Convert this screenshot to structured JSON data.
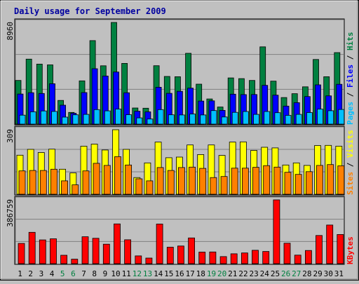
{
  "title": "Daily usage for September 2009",
  "colors": {
    "background": "#c0c0c0",
    "plot_bg": "#c0c0c0",
    "title": "#0000a0",
    "hits": "#008040",
    "files": "#0000ff",
    "pages": "#00c0ff",
    "visits": "#ffff00",
    "sites": "#ff8000",
    "kbytes": "#ff0000",
    "weekend_label": "#008040",
    "weekday_label": "#000000"
  },
  "chart_data": [
    {
      "type": "bar",
      "panel": "hits-files-pages",
      "categories": [
        "1",
        "2",
        "3",
        "4",
        "5",
        "6",
        "7",
        "8",
        "9",
        "10",
        "11",
        "12",
        "13",
        "14",
        "15",
        "16",
        "17",
        "18",
        "19",
        "20",
        "21",
        "22",
        "23",
        "24",
        "25",
        "26",
        "27",
        "28",
        "29",
        "30",
        "31"
      ],
      "weekend_days": [
        "5",
        "6",
        "12",
        "13",
        "19",
        "20",
        "26",
        "27"
      ],
      "ymax_label": "8960",
      "ylim": [
        0,
        8960
      ],
      "right_label_parts": [
        "Pages",
        "Files",
        "Hits"
      ],
      "series": [
        {
          "name": "Hits",
          "values": [
            3850,
            5730,
            5290,
            5220,
            2090,
            1030,
            3810,
            7360,
            5140,
            8960,
            5350,
            1420,
            1400,
            5150,
            4200,
            4180,
            6240,
            3520,
            2220,
            1510,
            4070,
            4010,
            3850,
            6810,
            3790,
            2340,
            2680,
            3290,
            5700,
            4180,
            6300
          ]
        },
        {
          "name": "Files",
          "values": [
            2650,
            2770,
            2700,
            3560,
            1670,
            960,
            2780,
            4880,
            4240,
            4590,
            2760,
            1140,
            1080,
            3250,
            2710,
            2890,
            3170,
            2030,
            2050,
            1210,
            2640,
            2600,
            2610,
            3420,
            2550,
            1590,
            1890,
            2430,
            3460,
            2490,
            3510
          ]
        },
        {
          "name": "Pages",
          "values": [
            790,
            1090,
            1160,
            1120,
            620,
            820,
            860,
            1280,
            1170,
            1330,
            830,
            550,
            450,
            1280,
            820,
            810,
            890,
            810,
            1190,
            630,
            1040,
            1110,
            860,
            1110,
            1010,
            770,
            860,
            1020,
            1320,
            1180,
            1290
          ]
        }
      ]
    },
    {
      "type": "bar",
      "panel": "visits-sites",
      "categories": [
        "1",
        "2",
        "3",
        "4",
        "5",
        "6",
        "7",
        "8",
        "9",
        "10",
        "11",
        "12",
        "13",
        "14",
        "15",
        "16",
        "17",
        "18",
        "19",
        "20",
        "21",
        "22",
        "23",
        "24",
        "25",
        "26",
        "27",
        "28",
        "29",
        "30",
        "31"
      ],
      "ymax_label": "309",
      "ylim": [
        0,
        309
      ],
      "right_label_parts": [
        "Sites",
        "Visits"
      ],
      "series": [
        {
          "name": "Visits",
          "values": [
            187,
            215,
            200,
            216,
            120,
            102,
            230,
            240,
            212,
            309,
            215,
            80,
            150,
            250,
            175,
            178,
            236,
            190,
            236,
            186,
            250,
            251,
            210,
            225,
            222,
            140,
            150,
            138,
            233,
            234,
            230
          ]
        },
        {
          "name": "Sites",
          "values": [
            112,
            114,
            114,
            120,
            64,
            45,
            112,
            148,
            138,
            180,
            140,
            74,
            64,
            128,
            114,
            128,
            130,
            124,
            80,
            85,
            125,
            125,
            129,
            137,
            130,
            105,
            95,
            108,
            138,
            142,
            136
          ]
        }
      ]
    },
    {
      "type": "bar",
      "panel": "kbytes",
      "categories": [
        "1",
        "2",
        "3",
        "4",
        "5",
        "6",
        "7",
        "8",
        "9",
        "10",
        "11",
        "12",
        "13",
        "14",
        "15",
        "16",
        "17",
        "18",
        "19",
        "20",
        "21",
        "22",
        "23",
        "24",
        "25",
        "26",
        "27",
        "28",
        "29",
        "30",
        "31"
      ],
      "ymax_label": "386759",
      "ylim": [
        0,
        386759
      ],
      "right_label_parts": [
        "KBytes"
      ],
      "series": [
        {
          "name": "KBytes",
          "values": [
            123000,
            190000,
            144000,
            151000,
            51000,
            27000,
            163000,
            154000,
            118000,
            241000,
            145000,
            47000,
            34000,
            240000,
            100000,
            107000,
            156000,
            70000,
            71000,
            43000,
            60000,
            65000,
            81000,
            74000,
            386759,
            124000,
            52000,
            80000,
            171000,
            234000,
            177000
          ]
        }
      ]
    }
  ]
}
